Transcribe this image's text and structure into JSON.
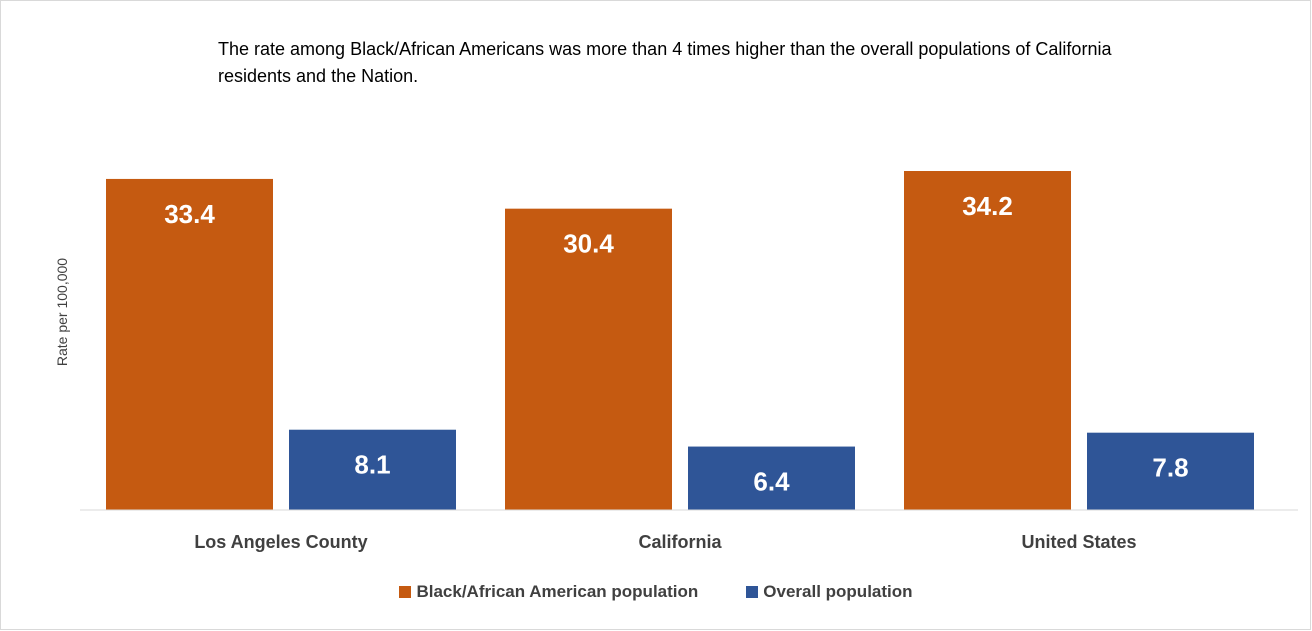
{
  "chart_data": {
    "type": "bar",
    "annotation": "The rate among Black/African Americans was more than 4 times higher than the overall populations of California residents and the Nation.",
    "ylabel": "Rate per 100,000",
    "xlabel": "",
    "categories": [
      "Los Angeles County",
      "California",
      "United States"
    ],
    "series": [
      {
        "name": "Black/African American population",
        "color": "#c55a11",
        "values": [
          33.4,
          30.4,
          34.2
        ]
      },
      {
        "name": "Overall population",
        "color": "#2f5597",
        "values": [
          8.1,
          6.4,
          7.8
        ]
      }
    ],
    "ylim": [
      0,
      34.2
    ],
    "grid": false,
    "legend_position": "bottom",
    "data_labels": true
  }
}
